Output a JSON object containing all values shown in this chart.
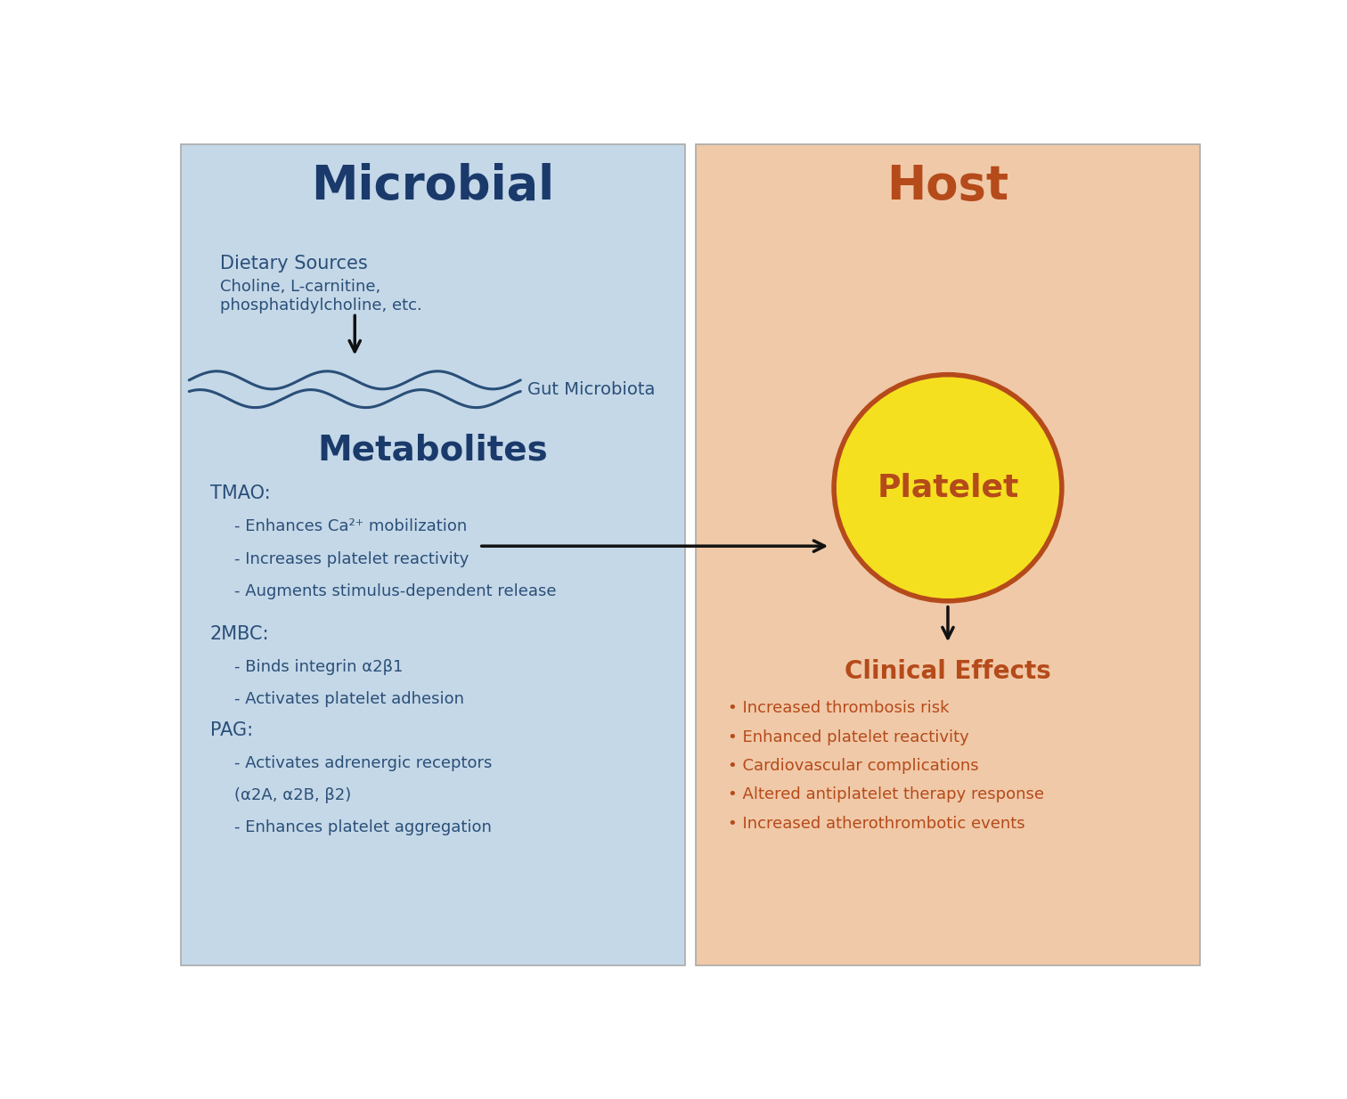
{
  "left_bg_color": "#c5d8e8",
  "right_bg_color": "#f0c9a8",
  "microbial_title": "Microbial",
  "microbial_title_color": "#1a3a6b",
  "host_title": "Host",
  "host_title_color": "#b54a1a",
  "dietary_sources_label": "Dietary Sources",
  "dietary_sources_sublabel": "Choline, L-carnitine,\nphosphatidylcholine, etc.",
  "dietary_text_color": "#2a4f78",
  "gut_microbiota_label": "Gut Microbiota",
  "metabolites_title": "Metabolites",
  "metabolites_title_color": "#1a3a6b",
  "wave_color": "#2a4f78",
  "arrow_color": "#111111",
  "tmao_text": "TMAO:",
  "tmao_bullets": [
    "- Enhances Ca²⁺ mobilization",
    "- Increases platelet reactivity",
    "- Augments stimulus-dependent release"
  ],
  "mbc_text": "2MBC:",
  "mbc_bullets": [
    "- Binds integrin α2β1",
    "- Activates platelet adhesion"
  ],
  "pag_text": "PAG:",
  "pag_bullets": [
    "- Activates adrenergic receptors",
    "(α2A, α2B, β2)",
    "- Enhances platelet aggregation"
  ],
  "microbial_text_color": "#2a4f78",
  "platelet_label": "Platelet",
  "platelet_fill_color": "#f5e020",
  "platelet_edge_color": "#b54a1a",
  "platelet_text_color": "#b54a1a",
  "clinical_effects_title": "Clinical Effects",
  "clinical_effects_color": "#b54a1a",
  "clinical_bullets": [
    "• Increased thrombosis risk",
    "• Enhanced platelet reactivity",
    "• Cardiovascular complications",
    "• Altered antiplatelet therapy response",
    "• Increased atherothrombotic events"
  ],
  "clinical_text_color": "#b54a1a",
  "border_color": "#aaaaaa"
}
